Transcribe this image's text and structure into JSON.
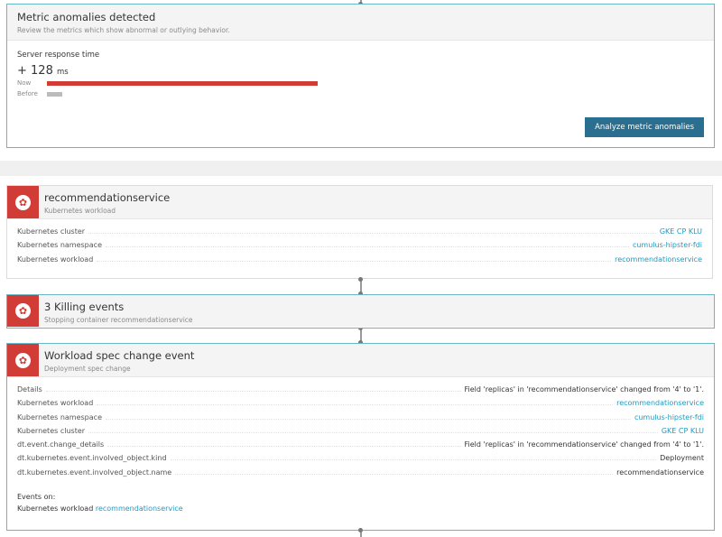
{
  "metric_card": {
    "title": "Metric anomalies detected",
    "subtitle": "Review the metrics which show abnormal or outlying behavior.",
    "metric_name": "Server response time",
    "delta": "+ 128",
    "unit": "ms",
    "now_label": "Now",
    "before_label": "Before",
    "now_fraction": 1.0,
    "before_fraction": 0.055,
    "button": "Analyze metric anomalies"
  },
  "entity_card": {
    "title": "recommendationservice",
    "subtitle": "Kubernetes workload",
    "icon": "kubernetes-icon",
    "rows": [
      {
        "key": "Kubernetes cluster",
        "value": "GKE CP KLU",
        "link": true
      },
      {
        "key": "Kubernetes namespace",
        "value": "cumulus-hipster-fdi",
        "link": true
      },
      {
        "key": "Kubernetes workload",
        "value": "recommendationservice",
        "link": true
      }
    ]
  },
  "killing_card": {
    "title": "3 Killing events",
    "subtitle": "Stopping container recommendationservice",
    "icon": "kubernetes-icon"
  },
  "spec_card": {
    "title": "Workload spec change event",
    "subtitle": "Deployment spec change",
    "icon": "kubernetes-icon",
    "rows": [
      {
        "key": "Details",
        "value": "Field 'replicas' in 'recommendationservice' changed from '4' to '1'.",
        "link": false
      },
      {
        "key": "Kubernetes workload",
        "value": "recommendationservice",
        "link": true
      },
      {
        "key": "Kubernetes namespace",
        "value": "cumulus-hipster-fdi",
        "link": true
      },
      {
        "key": "Kubernetes cluster",
        "value": "GKE CP KLU",
        "link": true
      },
      {
        "key": "dt.event.change_details",
        "value": "Field 'replicas' in 'recommendationservice' changed from '4' to '1'.",
        "link": false
      },
      {
        "key": "dt.kubernetes.event.involved_object.kind",
        "value": "Deployment",
        "link": false
      },
      {
        "key": "dt.kubernetes.event.involved_object.name",
        "value": "recommendationservice",
        "link": false
      }
    ],
    "events_on_label": "Events on:",
    "events_on_type": "Kubernetes workload",
    "events_on_link": "recommendationservice"
  },
  "colors": {
    "accent": "#6bb6c4",
    "alert": "#d13d36",
    "link": "#1f9ac0",
    "button": "#2a6f8f"
  }
}
